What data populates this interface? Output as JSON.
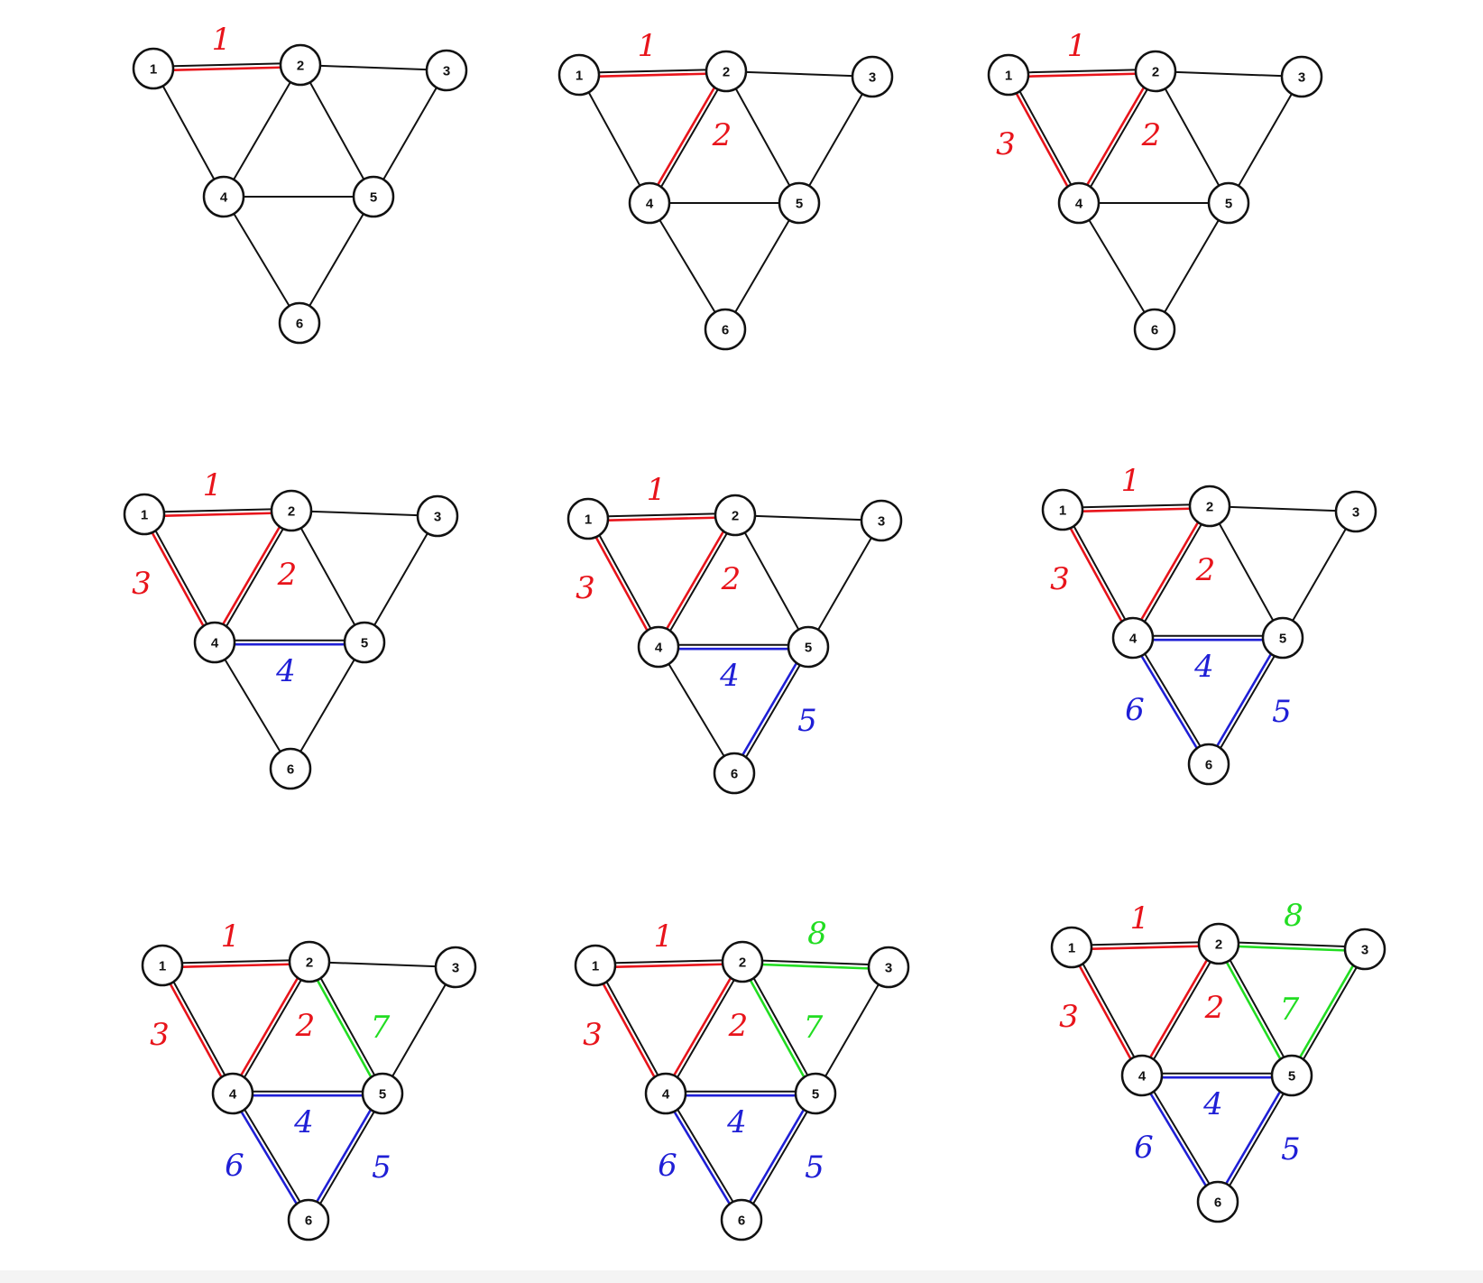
{
  "colors": {
    "red": "#e8141b",
    "blue": "#1f1fd6",
    "green": "#22dd22",
    "edge": "#111111",
    "node_fill": "#ffffff"
  },
  "graph": {
    "nodes": [
      {
        "id": 1,
        "label": "1"
      },
      {
        "id": 2,
        "label": "2"
      },
      {
        "id": 3,
        "label": "3"
      },
      {
        "id": 4,
        "label": "4"
      },
      {
        "id": 5,
        "label": "5"
      },
      {
        "id": 6,
        "label": "6"
      }
    ],
    "edges": [
      {
        "from": 1,
        "to": 2
      },
      {
        "from": 2,
        "to": 3
      },
      {
        "from": 1,
        "to": 4
      },
      {
        "from": 2,
        "to": 4
      },
      {
        "from": 2,
        "to": 5
      },
      {
        "from": 3,
        "to": 5
      },
      {
        "from": 4,
        "to": 5
      },
      {
        "from": 4,
        "to": 6
      },
      {
        "from": 5,
        "to": 6
      }
    ]
  },
  "traversal_steps": [
    {
      "from": 1,
      "to": 2,
      "order": "1",
      "color": "red"
    },
    {
      "from": 2,
      "to": 4,
      "order": "2",
      "color": "red"
    },
    {
      "from": 1,
      "to": 4,
      "order": "3",
      "color": "red"
    },
    {
      "from": 4,
      "to": 5,
      "order": "4",
      "color": "blue"
    },
    {
      "from": 5,
      "to": 6,
      "order": "5",
      "color": "blue"
    },
    {
      "from": 4,
      "to": 6,
      "order": "6",
      "color": "blue"
    },
    {
      "from": 2,
      "to": 5,
      "order": "7",
      "color": "green"
    },
    {
      "from": 2,
      "to": 3,
      "order": "8",
      "color": "green"
    },
    {
      "from": 3,
      "to": 5,
      "order": "",
      "color": "green"
    }
  ],
  "panels": [
    {
      "id": "panel-1",
      "highlighted_steps": 1
    },
    {
      "id": "panel-2",
      "highlighted_steps": 2
    },
    {
      "id": "panel-3",
      "highlighted_steps": 3
    },
    {
      "id": "panel-4",
      "highlighted_steps": 4
    },
    {
      "id": "panel-5",
      "highlighted_steps": 5
    },
    {
      "id": "panel-6",
      "highlighted_steps": 6
    },
    {
      "id": "panel-7",
      "highlighted_steps": 7
    },
    {
      "id": "panel-8",
      "highlighted_steps": 8
    },
    {
      "id": "panel-9",
      "highlighted_steps": 9
    }
  ]
}
